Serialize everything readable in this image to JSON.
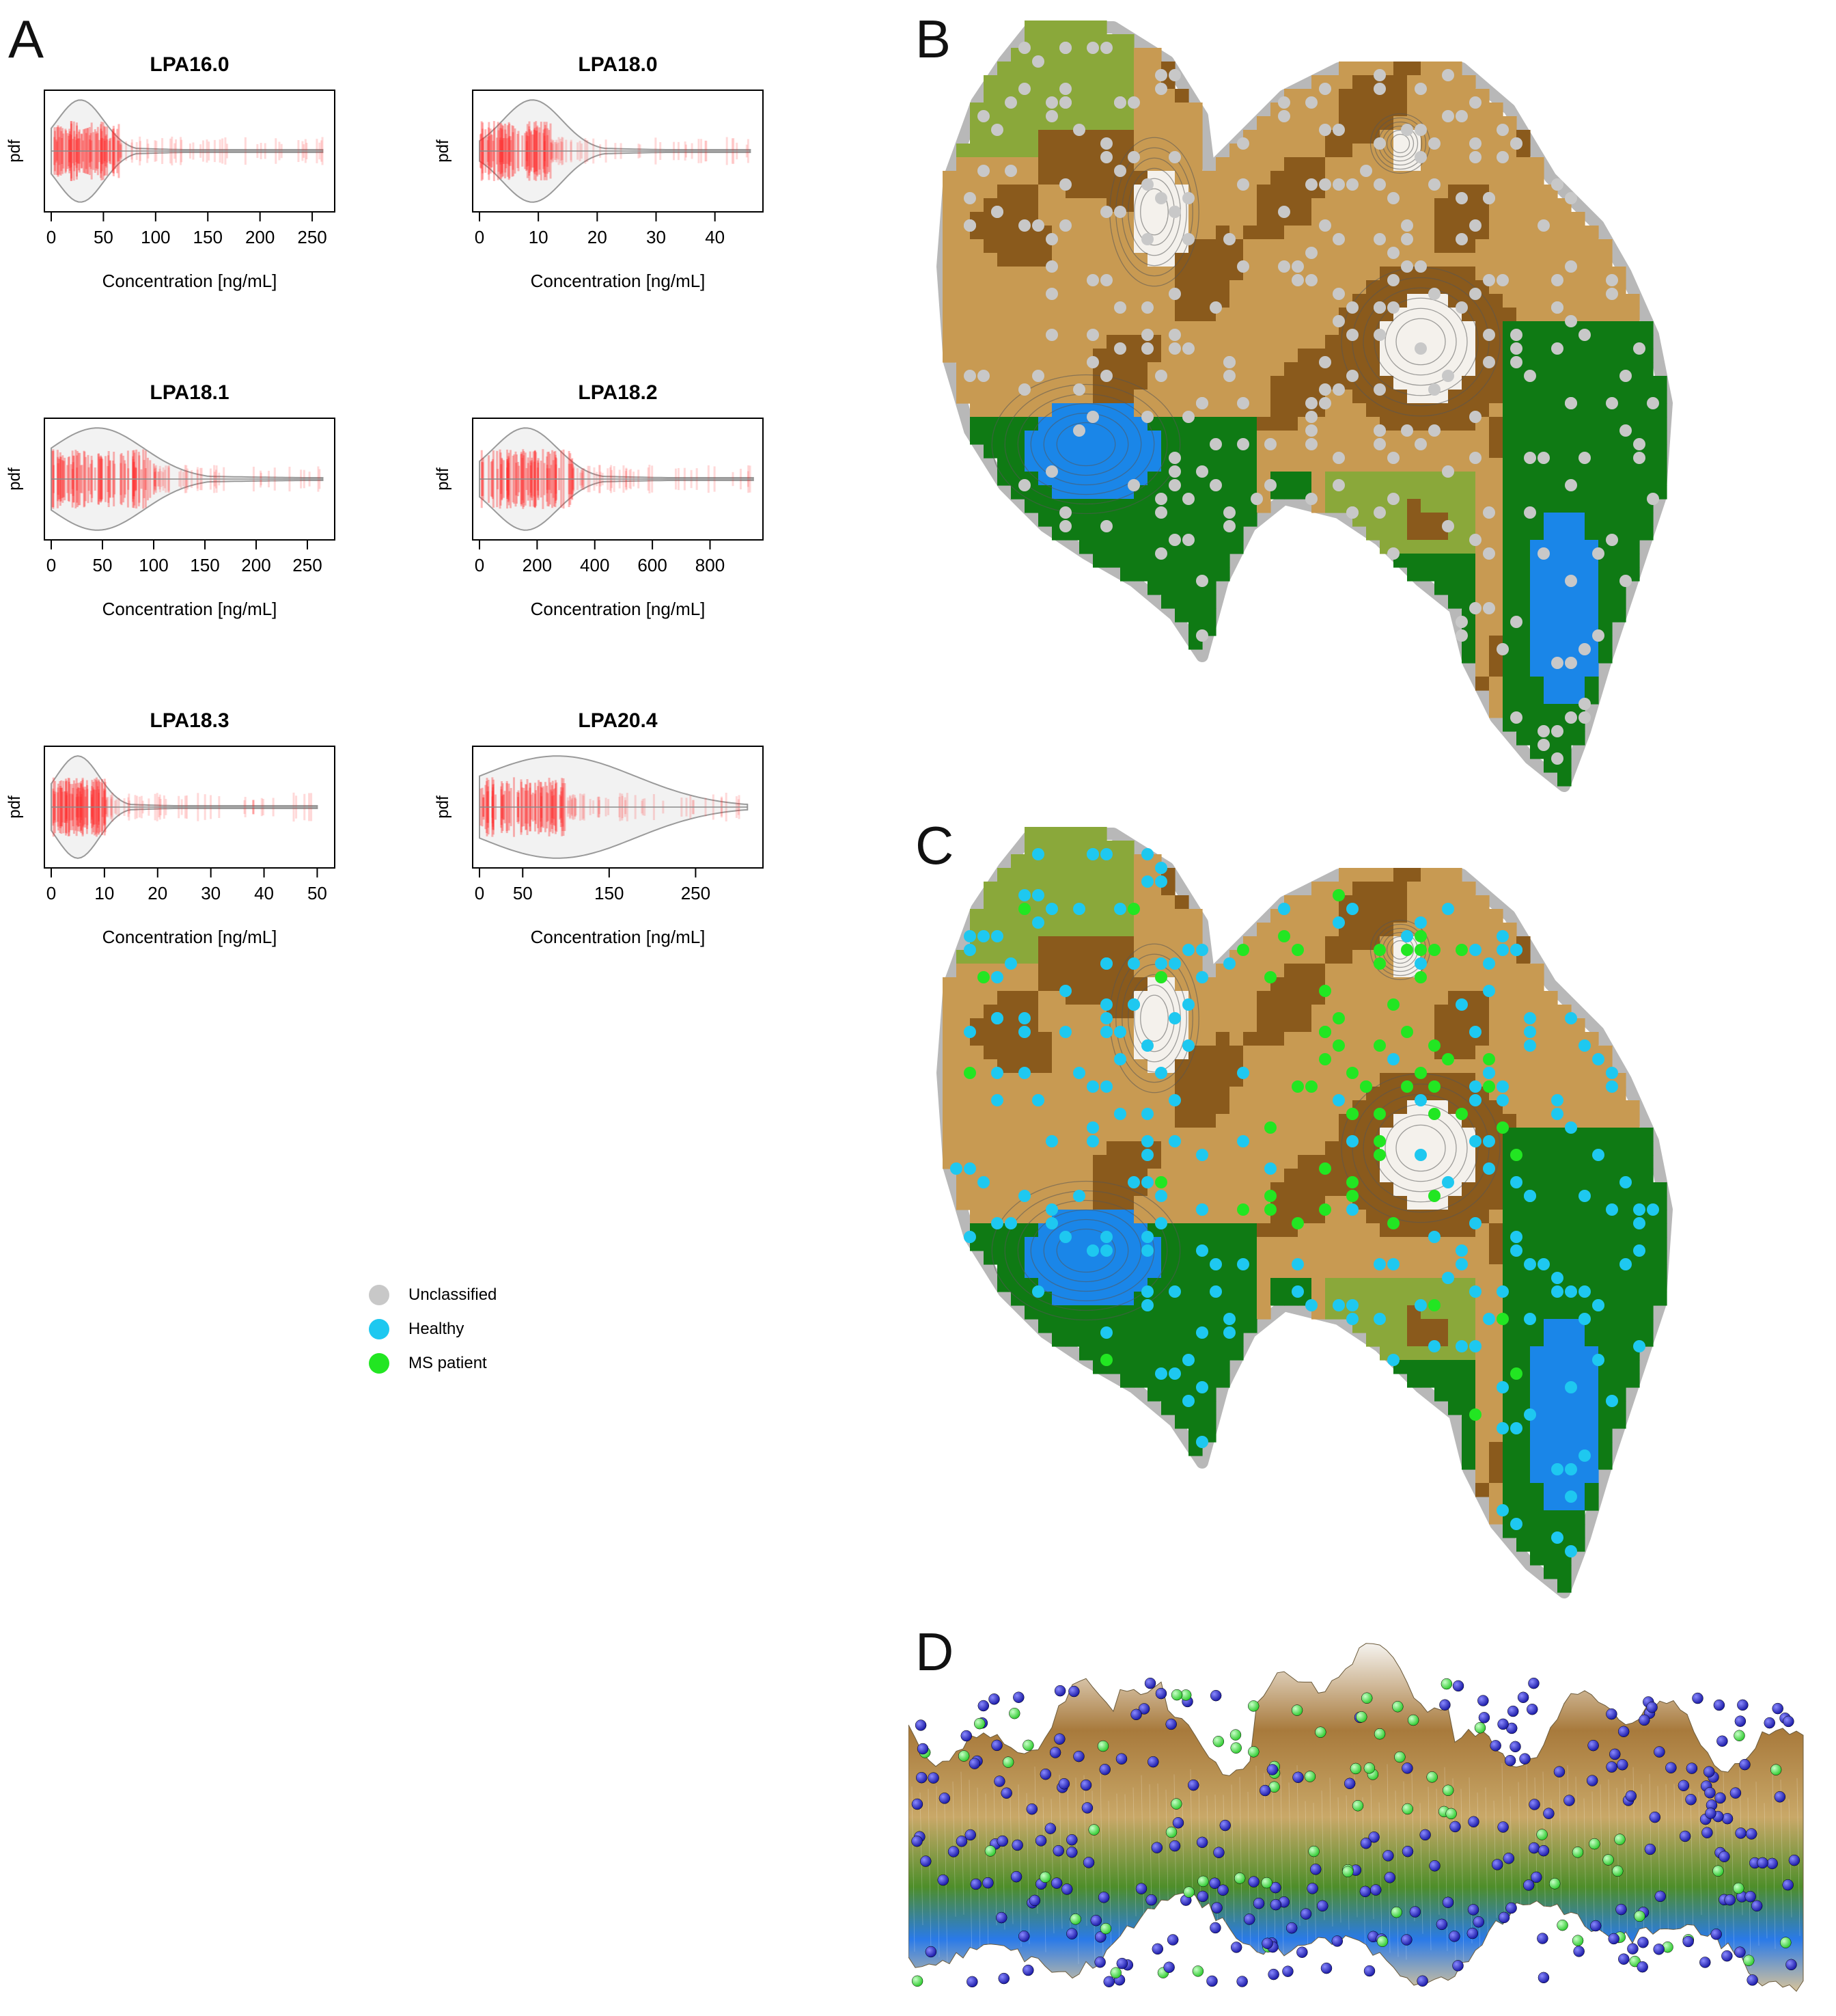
{
  "panels": {
    "a": "A",
    "b": "B",
    "c": "C",
    "d": "D"
  },
  "distributions": [
    {
      "title": "LPA16.0",
      "ylabel": "pdf",
      "xlabel": "Concentration [ng/mL]",
      "xmin": 0,
      "xmax": 265,
      "ticks": [
        0,
        50,
        100,
        150,
        200,
        250
      ],
      "peak": 28,
      "spread": 22,
      "tail": 260,
      "dense_end": 65
    },
    {
      "title": "LPA18.0",
      "ylabel": "pdf",
      "xlabel": "Concentration [ng/mL]",
      "xmin": 0,
      "xmax": 47,
      "ticks": [
        0,
        10,
        20,
        30,
        40
      ],
      "peak": 9,
      "spread": 5,
      "tail": 46,
      "dense_end": 12
    },
    {
      "title": "LPA18.1",
      "ylabel": "pdf",
      "xlabel": "Concentration [ng/mL]",
      "xmin": 0,
      "xmax": 270,
      "ticks": [
        0,
        50,
        100,
        150,
        200,
        250
      ],
      "peak": 45,
      "spread": 45,
      "tail": 265,
      "dense_end": 100
    },
    {
      "title": "LPA18.2",
      "ylabel": "pdf",
      "xlabel": "Concentration [ng/mL]",
      "xmin": 0,
      "xmax": 960,
      "ticks": [
        0,
        200,
        400,
        600,
        800
      ],
      "peak": 160,
      "spread": 110,
      "tail": 950,
      "dense_end": 320
    },
    {
      "title": "LPA18.3",
      "ylabel": "pdf",
      "xlabel": "Concentration [ng/mL]",
      "xmin": 0,
      "xmax": 52,
      "ticks": [
        0,
        10,
        20,
        30,
        40,
        50
      ],
      "peak": 5,
      "spread": 4,
      "tail": 50,
      "dense_end": 10
    },
    {
      "title": "LPA20.4",
      "ylabel": "pdf",
      "xlabel": "Concentration [ng/mL]",
      "xmin": 0,
      "xmax": 320,
      "ticks": [
        0,
        50,
        150,
        250
      ],
      "peak": 90,
      "spread": 90,
      "tail": 310,
      "dense_end": 100
    }
  ],
  "legend": [
    {
      "label": "Unclassified",
      "color": "#c8c8c8"
    },
    {
      "label": "Healthy",
      "color": "#1ec8f0"
    },
    {
      "label": "MS patient",
      "color": "#22e622"
    }
  ],
  "map_colors": {
    "water": "#1a86e8",
    "green": "#0f7a14",
    "light_green": "#8aa83a",
    "tan": "#c89a52",
    "brown": "#8a5a1c",
    "white": "#f4f1ec",
    "contour": "#555555"
  },
  "sphere_colors": {
    "healthy": "#1c1ca8",
    "ms": "#33cc33"
  }
}
